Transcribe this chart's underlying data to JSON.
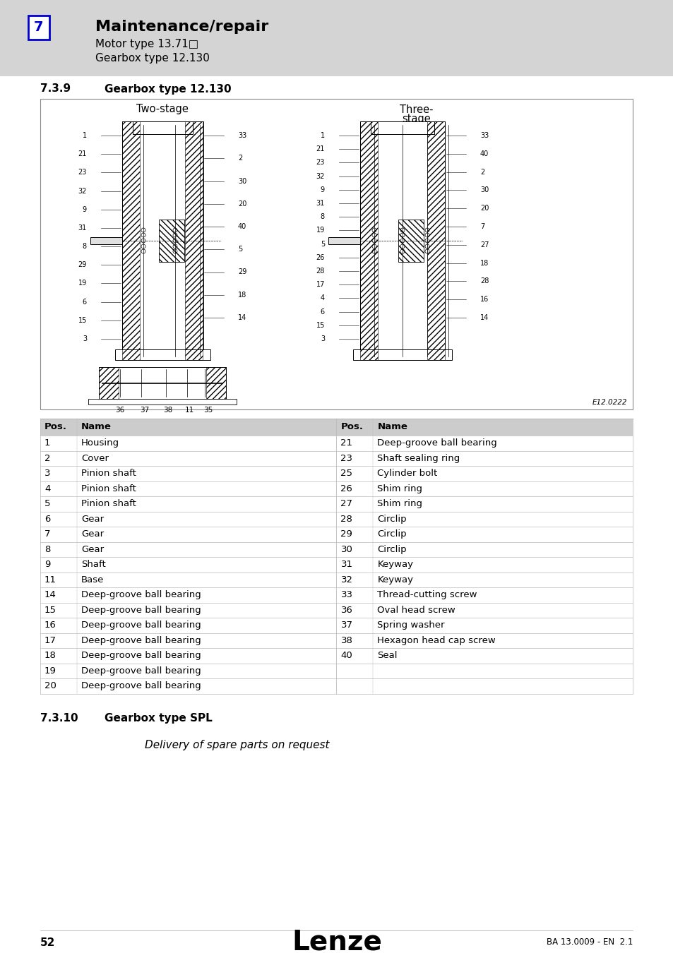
{
  "page_bg": "#ffffff",
  "header_bg": "#d4d4d4",
  "header_number": "7",
  "header_number_box_color": "#0000cc",
  "header_title": "Maintenance/repair",
  "header_subtitle1": "Motor type 13.71□",
  "header_subtitle2": "Gearbox type 12.130",
  "section_939_number": "7.3.9",
  "section_939_title": "Gearbox type 12.130",
  "section_3910_number": "7.3.10",
  "section_3910_title": "Gearbox type SPL",
  "section_3910_body": "Delivery of spare parts on request",
  "table_header_bg": "#cccccc",
  "table_border_color": "#bbbbbb",
  "table_data_left": [
    [
      "1",
      "Housing"
    ],
    [
      "2",
      "Cover"
    ],
    [
      "3",
      "Pinion shaft"
    ],
    [
      "4",
      "Pinion shaft"
    ],
    [
      "5",
      "Pinion shaft"
    ],
    [
      "6",
      "Gear"
    ],
    [
      "7",
      "Gear"
    ],
    [
      "8",
      "Gear"
    ],
    [
      "9",
      "Shaft"
    ],
    [
      "11",
      "Base"
    ],
    [
      "14",
      "Deep-groove ball bearing"
    ],
    [
      "15",
      "Deep-groove ball bearing"
    ],
    [
      "16",
      "Deep-groove ball bearing"
    ],
    [
      "17",
      "Deep-groove ball bearing"
    ],
    [
      "18",
      "Deep-groove ball bearing"
    ],
    [
      "19",
      "Deep-groove ball bearing"
    ],
    [
      "20",
      "Deep-groove ball bearing"
    ]
  ],
  "table_data_right": [
    [
      "21",
      "Deep-groove ball bearing"
    ],
    [
      "23",
      "Shaft sealing ring"
    ],
    [
      "25",
      "Cylinder bolt"
    ],
    [
      "26",
      "Shim ring"
    ],
    [
      "27",
      "Shim ring"
    ],
    [
      "28",
      "Circlip"
    ],
    [
      "29",
      "Circlip"
    ],
    [
      "30",
      "Circlip"
    ],
    [
      "31",
      "Keyway"
    ],
    [
      "32",
      "Keyway"
    ],
    [
      "33",
      "Thread-cutting screw"
    ],
    [
      "36",
      "Oval head screw"
    ],
    [
      "37",
      "Spring washer"
    ],
    [
      "38",
      "Hexagon head cap screw"
    ],
    [
      "40",
      "Seal"
    ],
    [
      "",
      ""
    ],
    [
      "",
      ""
    ]
  ],
  "footer_page": "52",
  "footer_logo": "Lenze",
  "footer_ref": "BA 13.0009 - EN  2.1",
  "diagram_label": "E12.0222",
  "diagram_caption_left": "Two-stage",
  "diagram_caption_right": "Three-\nstage",
  "left_labels_left": [
    "1",
    "21",
    "23",
    "32",
    "9",
    "31",
    "8",
    "29",
    "19",
    "6",
    "15",
    "3"
  ],
  "left_labels_right": [
    "33",
    "2",
    "30",
    "20",
    "40",
    "5",
    "29",
    "18",
    "14"
  ],
  "right_labels_left": [
    "1",
    "21",
    "23",
    "32",
    "9",
    "31",
    "8",
    "19",
    "5",
    "26",
    "28",
    "17",
    "4",
    "6",
    "15",
    "3"
  ],
  "right_labels_right": [
    "33",
    "40",
    "2",
    "30",
    "20",
    "7",
    "27",
    "18",
    "28",
    "16",
    "14"
  ]
}
